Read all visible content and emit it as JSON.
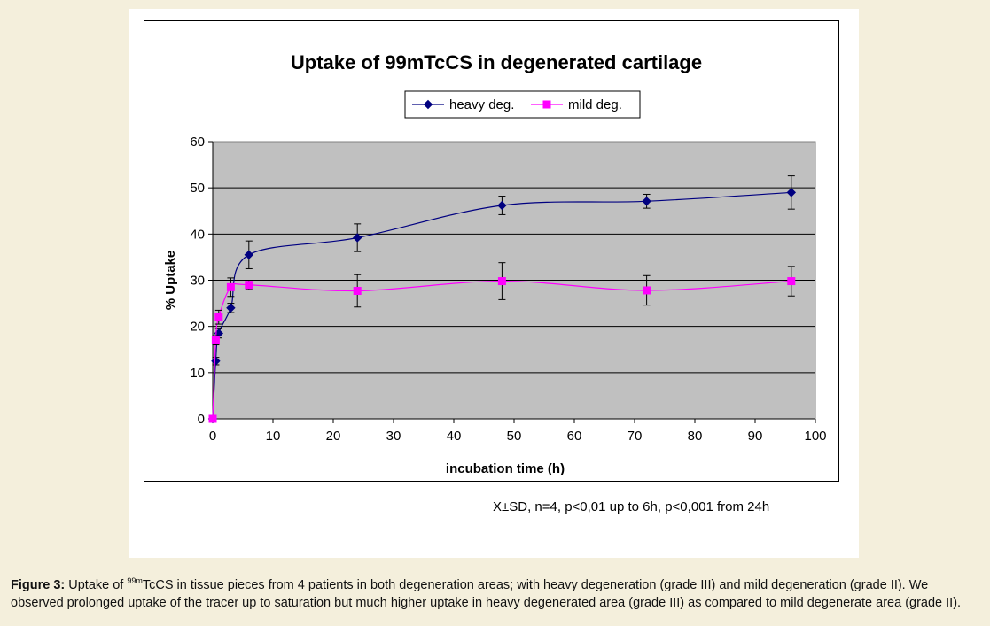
{
  "chart_data": {
    "type": "line",
    "title": "Uptake of 99mTcCS in degenerated cartilage",
    "xlabel": "incubation time (h)",
    "ylabel": "% Uptake",
    "xlim": [
      0,
      100
    ],
    "ylim": [
      0,
      60
    ],
    "xticks": [
      0,
      10,
      20,
      30,
      40,
      50,
      60,
      70,
      80,
      90,
      100
    ],
    "yticks": [
      0,
      10,
      20,
      30,
      40,
      50,
      60
    ],
    "grid": "horizontal",
    "legend_position": "top-center",
    "series": [
      {
        "name": "heavy deg.",
        "color": "#000080",
        "marker": "diamond",
        "x": [
          0,
          0.5,
          1,
          3,
          6,
          24,
          48,
          72,
          96
        ],
        "y": [
          0,
          12.5,
          18.5,
          24,
          35.5,
          39.2,
          46.2,
          47.1,
          49
        ],
        "err": [
          0,
          0.8,
          1,
          1,
          3,
          3,
          2,
          1.5,
          3.6
        ]
      },
      {
        "name": "mild deg.",
        "color": "#ff00ff",
        "marker": "square",
        "x": [
          0,
          0.5,
          1,
          3,
          6,
          24,
          48,
          72,
          96
        ],
        "y": [
          0,
          17,
          22,
          28.5,
          29,
          27.7,
          29.8,
          27.8,
          29.8
        ],
        "err": [
          0,
          1,
          1.5,
          2,
          1,
          3.5,
          4,
          3.2,
          3.2
        ]
      }
    ]
  },
  "stats_note": "X±SD, n=4, p<0,01 up to 6h, p<0,001 from 24h",
  "caption": {
    "label": "Figure 3:",
    "text_before": " Uptake of ",
    "superscript": "99m",
    "text_after": "TcCS in tissue pieces from 4 patients in both degeneration areas; with heavy degeneration (grade III) and mild degeneration (grade II). We observed prolonged uptake of the tracer up to saturation but much higher uptake in heavy degenerated area (grade III) as compared to mild degenerate area (grade II)."
  }
}
